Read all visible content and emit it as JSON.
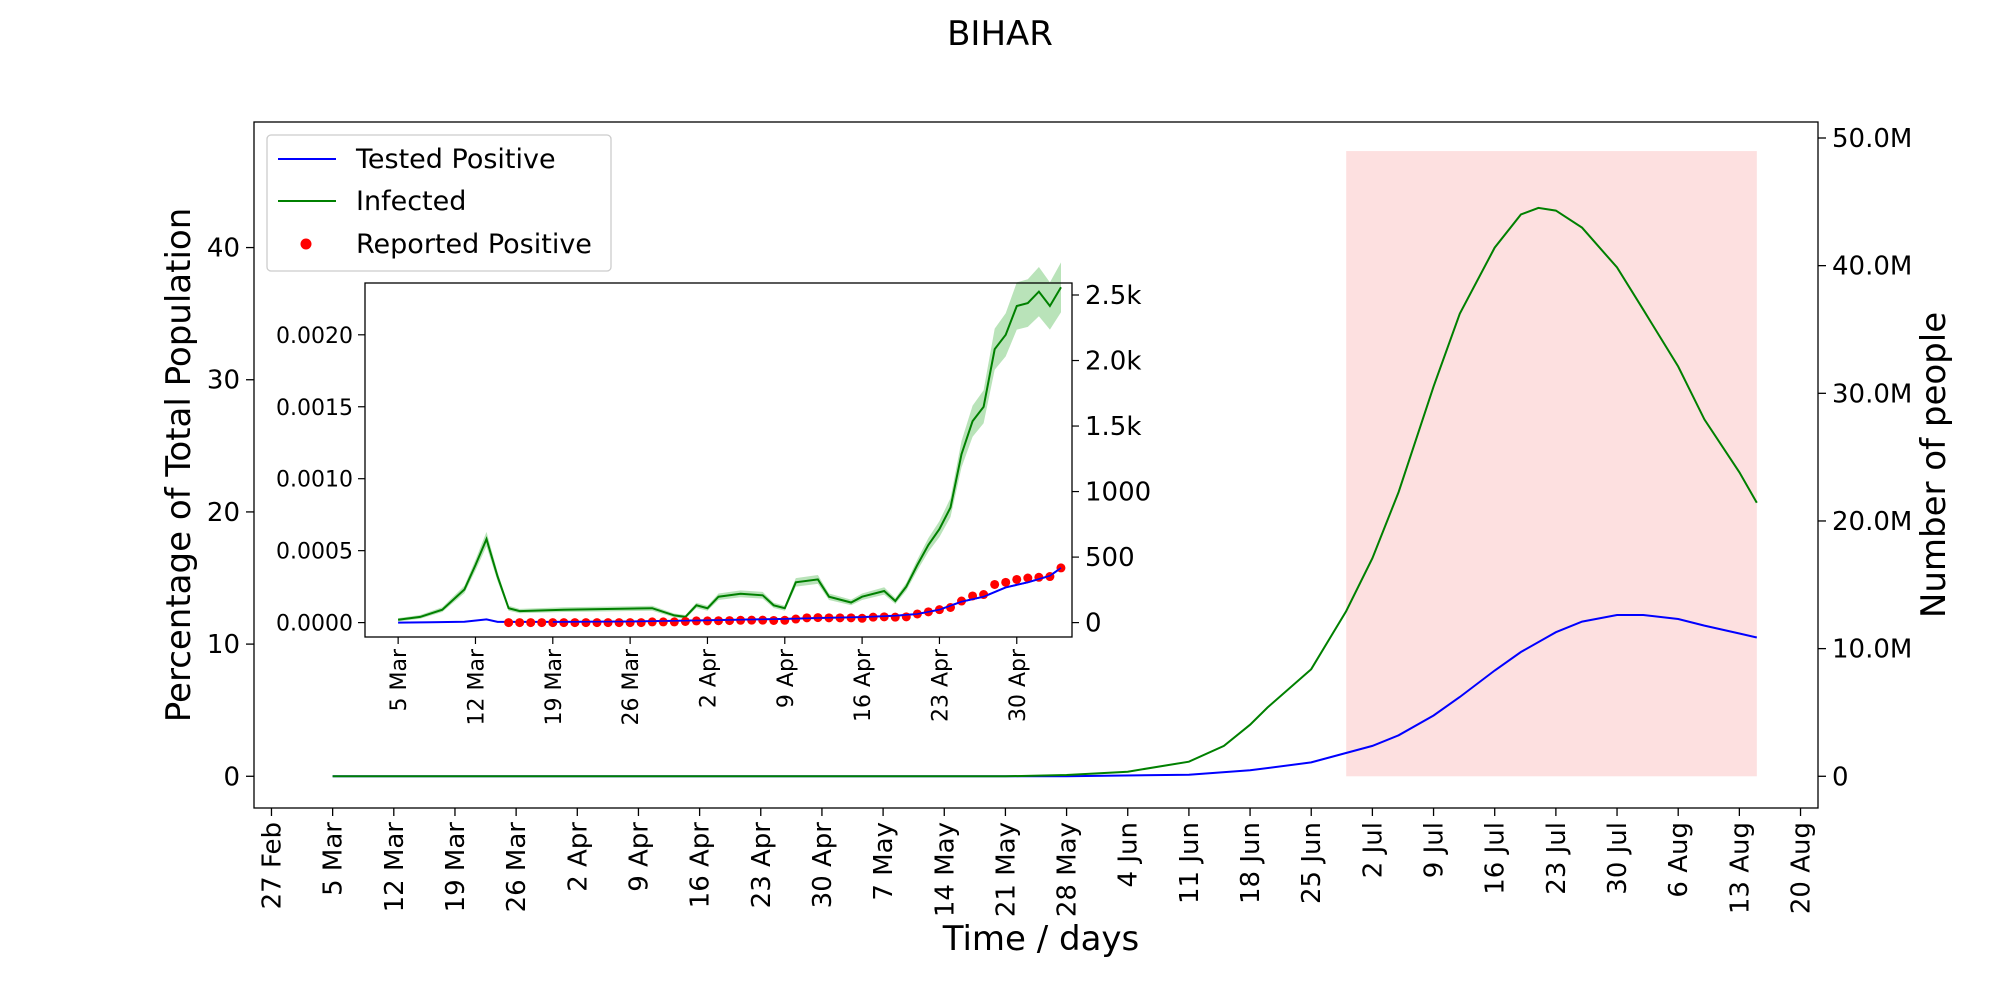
{
  "title": "BIHAR",
  "colors": {
    "tested_positive": "#0000ff",
    "infected": "#008000",
    "reported_positive": "#ff0000",
    "forecast_shade": "#fde0e0",
    "infected_band": "#b9e3b9"
  },
  "chart_data": [
    {
      "type": "line",
      "title": "BIHAR",
      "xlabel": "Time / days",
      "ylabel": "Percentage of Total Population",
      "y2label": "Number of people",
      "x_ticks": [
        "27 Feb",
        "5 Mar",
        "12 Mar",
        "19 Mar",
        "26 Mar",
        "2 Apr",
        "9 Apr",
        "16 Apr",
        "23 Apr",
        "30 Apr",
        "7 May",
        "14 May",
        "21 May",
        "28 May",
        "4 Jun",
        "11 Jun",
        "18 Jun",
        "25 Jun",
        "2 Jul",
        "9 Jul",
        "16 Jul",
        "23 Jul",
        "30 Jul",
        "6 Aug",
        "13 Aug",
        "20 Aug"
      ],
      "y_ticks": [
        "0",
        "10",
        "20",
        "30",
        "40"
      ],
      "y2_ticks": [
        "0",
        "10.0M",
        "20.0M",
        "30.0M",
        "40.0M",
        "50.0M"
      ],
      "xlim": [
        "2020-02-25",
        "2020-08-22"
      ],
      "ylim": [
        -2.4,
        49.5
      ],
      "legend": {
        "position": "upper-left",
        "entries": [
          "Tested Positive",
          "Infected",
          "Reported Positive"
        ]
      },
      "shaded_region": {
        "start": "2020-06-29",
        "end": "2020-08-15",
        "ymin": 0,
        "ymax": 47.3
      },
      "series": [
        {
          "name": "Tested Positive",
          "style": "line",
          "points": [
            [
              "2020-03-05",
              0
            ],
            [
              "2020-05-28",
              0
            ],
            [
              "2020-06-11",
              0.12
            ],
            [
              "2020-06-18",
              0.45
            ],
            [
              "2020-06-25",
              1.05
            ],
            [
              "2020-07-02",
              2.3
            ],
            [
              "2020-07-05",
              3.1
            ],
            [
              "2020-07-09",
              4.6
            ],
            [
              "2020-07-12",
              6.0
            ],
            [
              "2020-07-16",
              8.0
            ],
            [
              "2020-07-19",
              9.4
            ],
            [
              "2020-07-23",
              10.9
            ],
            [
              "2020-07-26",
              11.7
            ],
            [
              "2020-07-30",
              12.2
            ],
            [
              "2020-08-02",
              12.2
            ],
            [
              "2020-08-06",
              11.9
            ],
            [
              "2020-08-09",
              11.4
            ],
            [
              "2020-08-13",
              10.8
            ],
            [
              "2020-08-15",
              10.5
            ]
          ]
        },
        {
          "name": "Infected",
          "style": "line",
          "points": [
            [
              "2020-03-05",
              0
            ],
            [
              "2020-05-21",
              0
            ],
            [
              "2020-05-28",
              0.1
            ],
            [
              "2020-06-04",
              0.35
            ],
            [
              "2020-06-11",
              1.1
            ],
            [
              "2020-06-15",
              2.3
            ],
            [
              "2020-06-18",
              3.9
            ],
            [
              "2020-06-20",
              5.2
            ],
            [
              "2020-06-25",
              8.1
            ],
            [
              "2020-06-29",
              12.5
            ],
            [
              "2020-07-02",
              16.5
            ],
            [
              "2020-07-05",
              21.5
            ],
            [
              "2020-07-09",
              29.5
            ],
            [
              "2020-07-12",
              35.0
            ],
            [
              "2020-07-16",
              40.0
            ],
            [
              "2020-07-19",
              42.5
            ],
            [
              "2020-07-21",
              43.0
            ],
            [
              "2020-07-23",
              42.8
            ],
            [
              "2020-07-26",
              41.5
            ],
            [
              "2020-07-30",
              38.5
            ],
            [
              "2020-08-02",
              35.3
            ],
            [
              "2020-08-06",
              31.0
            ],
            [
              "2020-08-09",
              27.0
            ],
            [
              "2020-08-13",
              23.0
            ],
            [
              "2020-08-15",
              20.7
            ]
          ]
        }
      ]
    },
    {
      "type": "line",
      "role": "inset",
      "x_ticks": [
        "5 Mar",
        "12 Mar",
        "19 Mar",
        "26 Mar",
        "2 Apr",
        "9 Apr",
        "16 Apr",
        "23 Apr",
        "30 Apr"
      ],
      "y_ticks": [
        "0.0000",
        "0.0005",
        "0.0010",
        "0.0015",
        "0.0020"
      ],
      "y2_ticks": [
        "0",
        "500",
        "1000",
        "1.5k",
        "2.0k",
        "2.5k"
      ],
      "xlim": [
        "2020-03-02",
        "2020-05-05"
      ],
      "ylim": [
        -0.0001,
        0.00236
      ],
      "series": [
        {
          "name": "Tested Positive",
          "style": "line",
          "points": [
            [
              "2020-03-05",
              0.0
            ],
            [
              "2020-03-08",
              2e-06
            ],
            [
              "2020-03-11",
              6e-06
            ],
            [
              "2020-03-13",
              2.2e-05
            ],
            [
              "2020-03-14",
              5e-06
            ],
            [
              "2020-03-19",
              5e-06
            ],
            [
              "2020-03-26",
              8e-06
            ],
            [
              "2020-03-29",
              1.1e-05
            ],
            [
              "2020-04-02",
              1.6e-05
            ],
            [
              "2020-04-09",
              2.6e-05
            ],
            [
              "2020-04-12",
              3.2e-05
            ],
            [
              "2020-04-16",
              3.8e-05
            ],
            [
              "2020-04-19",
              4.8e-05
            ],
            [
              "2020-04-21",
              6e-05
            ],
            [
              "2020-04-23",
              9e-05
            ],
            [
              "2020-04-25",
              0.000145
            ],
            [
              "2020-04-27",
              0.00018
            ],
            [
              "2020-04-29",
              0.000245
            ],
            [
              "2020-05-01",
              0.00028
            ],
            [
              "2020-05-03",
              0.000325
            ],
            [
              "2020-05-04",
              0.00038
            ]
          ]
        },
        {
          "name": "Infected",
          "style": "line",
          "points": [
            [
              "2020-03-05",
              2e-05
            ],
            [
              "2020-03-07",
              4e-05
            ],
            [
              "2020-03-09",
              9e-05
            ],
            [
              "2020-03-11",
              0.00023
            ],
            [
              "2020-03-12",
              0.0004
            ],
            [
              "2020-03-13",
              0.00058
            ],
            [
              "2020-03-14",
              0.00032
            ],
            [
              "2020-03-15",
              0.0001
            ],
            [
              "2020-03-16",
              8e-05
            ],
            [
              "2020-03-20",
              9e-05
            ],
            [
              "2020-03-28",
              0.0001
            ],
            [
              "2020-03-30",
              5e-05
            ],
            [
              "2020-03-31",
              4e-05
            ],
            [
              "2020-04-01",
              0.00012
            ],
            [
              "2020-04-02",
              0.0001
            ],
            [
              "2020-04-03",
              0.00018
            ],
            [
              "2020-04-05",
              0.0002
            ],
            [
              "2020-04-07",
              0.00019
            ],
            [
              "2020-04-08",
              0.00012
            ],
            [
              "2020-04-09",
              0.0001
            ],
            [
              "2020-04-10",
              0.00028
            ],
            [
              "2020-04-12",
              0.0003
            ],
            [
              "2020-04-13",
              0.00018
            ],
            [
              "2020-04-15",
              0.00014
            ],
            [
              "2020-04-16",
              0.00018
            ],
            [
              "2020-04-18",
              0.00022
            ],
            [
              "2020-04-19",
              0.00015
            ],
            [
              "2020-04-20",
              0.00025
            ],
            [
              "2020-04-21",
              0.0004
            ],
            [
              "2020-04-22",
              0.00054
            ],
            [
              "2020-04-23",
              0.00065
            ],
            [
              "2020-04-24",
              0.0008
            ],
            [
              "2020-04-25",
              0.00117
            ],
            [
              "2020-04-26",
              0.0014
            ],
            [
              "2020-04-27",
              0.0015
            ],
            [
              "2020-04-28",
              0.0019
            ],
            [
              "2020-04-29",
              0.002
            ],
            [
              "2020-04-30",
              0.0022
            ],
            [
              "2020-05-01",
              0.00222
            ],
            [
              "2020-05-02",
              0.0023
            ],
            [
              "2020-05-03",
              0.0022
            ],
            [
              "2020-05-04",
              0.00233
            ]
          ]
        },
        {
          "name": "Reported Positive",
          "style": "scatter",
          "points": [
            [
              "2020-03-15",
              0.0
            ],
            [
              "2020-03-16",
              0.0
            ],
            [
              "2020-03-17",
              0.0
            ],
            [
              "2020-03-18",
              0.0
            ],
            [
              "2020-03-19",
              0.0
            ],
            [
              "2020-03-20",
              0.0
            ],
            [
              "2020-03-21",
              0.0
            ],
            [
              "2020-03-22",
              0.0
            ],
            [
              "2020-03-23",
              0.0
            ],
            [
              "2020-03-24",
              0.0
            ],
            [
              "2020-03-25",
              0.0
            ],
            [
              "2020-03-26",
              0.0
            ],
            [
              "2020-03-27",
              0.0
            ],
            [
              "2020-03-28",
              5e-06
            ],
            [
              "2020-03-29",
              5e-06
            ],
            [
              "2020-03-30",
              5e-06
            ],
            [
              "2020-03-31",
              8e-06
            ],
            [
              "2020-04-01",
              1.2e-05
            ],
            [
              "2020-04-02",
              1.2e-05
            ],
            [
              "2020-04-03",
              1.3e-05
            ],
            [
              "2020-04-04",
              1.4e-05
            ],
            [
              "2020-04-05",
              1.6e-05
            ],
            [
              "2020-04-06",
              1.7e-05
            ],
            [
              "2020-04-07",
              1.7e-05
            ],
            [
              "2020-04-08",
              1.5e-05
            ],
            [
              "2020-04-09",
              1.6e-05
            ],
            [
              "2020-04-10",
              2.5e-05
            ],
            [
              "2020-04-11",
              3.3e-05
            ],
            [
              "2020-04-12",
              3.5e-05
            ],
            [
              "2020-04-13",
              3.3e-05
            ],
            [
              "2020-04-14",
              3.3e-05
            ],
            [
              "2020-04-15",
              3.3e-05
            ],
            [
              "2020-04-16",
              3e-05
            ],
            [
              "2020-04-17",
              3.8e-05
            ],
            [
              "2020-04-18",
              4e-05
            ],
            [
              "2020-04-19",
              3.8e-05
            ],
            [
              "2020-04-20",
              4e-05
            ],
            [
              "2020-04-21",
              6e-05
            ],
            [
              "2020-04-22",
              7.5e-05
            ],
            [
              "2020-04-23",
              9e-05
            ],
            [
              "2020-04-24",
              0.000105
            ],
            [
              "2020-04-25",
              0.00015
            ],
            [
              "2020-04-26",
              0.000185
            ],
            [
              "2020-04-27",
              0.000195
            ],
            [
              "2020-04-28",
              0.000265
            ],
            [
              "2020-04-29",
              0.00028
            ],
            [
              "2020-04-30",
              0.0003
            ],
            [
              "2020-05-01",
              0.00031
            ],
            [
              "2020-05-02",
              0.000315
            ],
            [
              "2020-05-03",
              0.00032
            ],
            [
              "2020-05-04",
              0.00038
            ]
          ]
        }
      ]
    }
  ]
}
